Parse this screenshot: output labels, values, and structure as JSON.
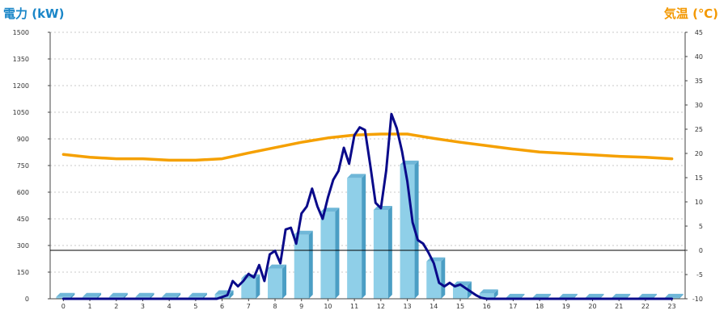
{
  "chart_data": {
    "type": "bar",
    "left_axis_title": "電力 (kW)",
    "right_axis_title": "気温 (℃)",
    "categories": [
      "0",
      "1",
      "2",
      "3",
      "4",
      "5",
      "6",
      "7",
      "8",
      "9",
      "10",
      "11",
      "12",
      "13",
      "14",
      "15",
      "16",
      "17",
      "18",
      "19",
      "20",
      "21",
      "22",
      "23"
    ],
    "y_left": {
      "min": 0,
      "max": 1500,
      "ticks": [
        "0",
        "150",
        "300",
        "450",
        "600",
        "750",
        "900",
        "1050",
        "1200",
        "1350",
        "1500"
      ]
    },
    "y_right": {
      "min": -10,
      "max": 45,
      "ticks": [
        "-10",
        "-5",
        "0",
        "5",
        "10",
        "15",
        "20",
        "25",
        "30",
        "35",
        "40",
        "45"
      ]
    },
    "grid": true,
    "series": [
      {
        "kind": "bar",
        "axis": "left",
        "values": [
          10,
          10,
          10,
          10,
          10,
          10,
          25,
          115,
          170,
          360,
          490,
          680,
          500,
          755,
          210,
          75,
          30,
          5,
          5,
          5,
          5,
          5,
          5,
          5
        ]
      },
      {
        "kind": "line",
        "axis": "left",
        "color": "#0a0a8a",
        "x": [
          0,
          5.8,
          6.0,
          6.2,
          6.4,
          6.6,
          6.8,
          7.0,
          7.2,
          7.4,
          7.6,
          7.8,
          8.0,
          8.2,
          8.4,
          8.6,
          8.8,
          9.0,
          9.2,
          9.4,
          9.6,
          9.8,
          10.0,
          10.2,
          10.4,
          10.6,
          10.8,
          11.0,
          11.2,
          11.4,
          11.6,
          11.8,
          12.0,
          12.2,
          12.4,
          12.6,
          12.8,
          13.0,
          13.2,
          13.4,
          13.6,
          13.8,
          14.0,
          14.2,
          14.4,
          14.6,
          14.8,
          15.0,
          15.2,
          15.4,
          15.6,
          15.8,
          16.0,
          23
        ],
        "y": [
          0,
          0,
          10,
          20,
          100,
          70,
          100,
          140,
          120,
          190,
          100,
          250,
          270,
          200,
          390,
          400,
          310,
          480,
          520,
          620,
          520,
          450,
          570,
          670,
          720,
          850,
          760,
          920,
          965,
          950,
          750,
          540,
          510,
          720,
          1040,
          960,
          830,
          660,
          430,
          330,
          310,
          260,
          200,
          90,
          70,
          90,
          70,
          80,
          60,
          40,
          20,
          5,
          0,
          0
        ]
      },
      {
        "kind": "line",
        "axis": "right",
        "color": "#f5a000",
        "x": [
          0,
          1,
          2,
          3,
          4,
          5,
          6,
          7,
          8,
          9,
          10,
          11,
          12,
          13,
          14,
          15,
          16,
          17,
          18,
          19,
          20,
          21,
          22,
          23
        ],
        "y": [
          19.8,
          19.2,
          18.9,
          18.9,
          18.6,
          18.6,
          18.9,
          20.1,
          21.2,
          22.3,
          23.2,
          23.8,
          24.0,
          24.0,
          23.1,
          22.3,
          21.6,
          20.9,
          20.3,
          20.0,
          19.7,
          19.4,
          19.2,
          18.9
        ]
      }
    ]
  }
}
